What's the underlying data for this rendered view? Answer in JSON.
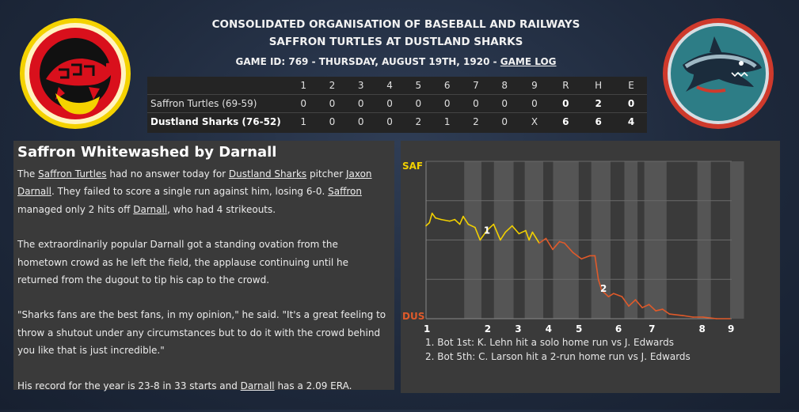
{
  "header": {
    "league": "CONSOLIDATED ORGANISATION OF BASEBALL AND RAILWAYS",
    "matchup": "SAFFRON TURTLES AT DUSTLAND SHARKS",
    "game_info": "GAME ID: 769 - THURSDAY, AUGUST 19TH, 1920 - ",
    "game_log_link": "GAME LOG"
  },
  "colors": {
    "home_team": "#e05a2a",
    "away_team": "#f2d000",
    "panel": "#3a3a3a"
  },
  "linescore": {
    "columns": [
      "1",
      "2",
      "3",
      "4",
      "5",
      "6",
      "7",
      "8",
      "9",
      "R",
      "H",
      "E"
    ],
    "rows": [
      {
        "team": "Saffron Turtles (69-59)",
        "cells": [
          "0",
          "0",
          "0",
          "0",
          "0",
          "0",
          "0",
          "0",
          "0",
          "0",
          "2",
          "0"
        ]
      },
      {
        "team": "Dustland Sharks (76-52)",
        "cells": [
          "1",
          "0",
          "0",
          "0",
          "2",
          "1",
          "2",
          "0",
          "X",
          "6",
          "6",
          "4"
        ]
      }
    ]
  },
  "story": {
    "headline": "Saffron Whitewashed by Darnall",
    "p1": {
      "t1": "The ",
      "l1": "Saffron Turtles",
      "t2": " had no answer today for ",
      "l2": "Dustland Sharks",
      "t3": " pitcher ",
      "l3": "Jaxon Darnall",
      "t4": ". They failed to score a single run against him, losing 6-0. ",
      "l4": "Saffron",
      "t5": " managed only 2 hits off ",
      "l5": "Darnall",
      "t6": ", who had 4 strikeouts."
    },
    "p2": "The extraordinarily popular Darnall got a standing ovation from the hometown crowd as he left the field, the applause continuing until he returned from the dugout to tip his cap to the crowd.",
    "p3": "\"Sharks fans are the best fans, in my opinion,\" he said. \"It's a great feeling to throw a shutout under any circumstances but to do it with the crowd behind you like that is just incredible.\"",
    "p4": {
      "t1": "His record for the year is 23-8 in 33 starts and ",
      "l1": "Darnall",
      "t2": " has a 2.09 ERA."
    }
  },
  "chart": {
    "top_label": "SAF",
    "bottom_label": "DUS",
    "inning_labels": [
      "1",
      "2",
      "3",
      "4",
      "5",
      "6",
      "7",
      "8",
      "9"
    ],
    "events": [
      {
        "marker": "1",
        "text": "1. Bot 1st: K. Lehn hit a solo home run vs J. Edwards"
      },
      {
        "marker": "2",
        "text": "2. Bot 5th: C. Larson hit a 2-run home run vs J. Edwards"
      }
    ]
  },
  "chart_data": {
    "type": "line",
    "y_top_label": "SAF",
    "y_bottom_label": "DUS",
    "x_categories": [
      "1",
      "2",
      "3",
      "4",
      "5",
      "6",
      "7",
      "8",
      "9"
    ],
    "series": [
      {
        "values": [
          [
            0.0,
            0.41
          ],
          [
            0.1,
            0.39
          ],
          [
            0.18,
            0.33
          ],
          [
            0.28,
            0.36
          ],
          [
            0.45,
            0.37
          ],
          [
            0.7,
            0.38
          ],
          [
            0.85,
            0.37
          ],
          [
            1.0,
            0.4
          ],
          [
            1.1,
            0.35
          ],
          [
            1.25,
            0.4
          ],
          [
            1.45,
            0.42
          ],
          [
            1.6,
            0.5
          ],
          [
            1.8,
            0.44
          ],
          [
            1.9,
            0.42
          ],
          [
            2.0,
            0.4
          ],
          [
            2.2,
            0.5
          ],
          [
            2.35,
            0.45
          ],
          [
            2.55,
            0.41
          ],
          [
            2.75,
            0.46
          ],
          [
            2.95,
            0.44
          ],
          [
            3.05,
            0.5
          ],
          [
            3.15,
            0.45
          ],
          [
            3.35,
            0.52
          ],
          [
            3.55,
            0.49
          ],
          [
            3.75,
            0.56
          ],
          [
            3.95,
            0.51
          ],
          [
            4.1,
            0.52
          ],
          [
            4.35,
            0.58
          ],
          [
            4.6,
            0.62
          ],
          [
            4.85,
            0.6
          ],
          [
            5.0,
            0.6
          ],
          [
            5.1,
            0.75
          ],
          [
            5.2,
            0.82
          ],
          [
            5.4,
            0.86
          ],
          [
            5.55,
            0.84
          ],
          [
            5.8,
            0.86
          ],
          [
            6.0,
            0.92
          ],
          [
            6.2,
            0.88
          ],
          [
            6.4,
            0.93
          ],
          [
            6.6,
            0.91
          ],
          [
            6.8,
            0.95
          ],
          [
            7.0,
            0.94
          ],
          [
            7.2,
            0.97
          ],
          [
            7.6,
            0.98
          ],
          [
            7.9,
            0.99
          ],
          [
            8.2,
            0.99
          ],
          [
            8.6,
            1.0
          ],
          [
            9.0,
            1.0
          ]
        ]
      }
    ],
    "annotations": [
      {
        "label": "1",
        "x": 1.8,
        "y": 0.44
      },
      {
        "label": "2",
        "x": 5.25,
        "y": 0.81
      }
    ],
    "shaded_bands": [
      [
        1.13,
        1.64
      ],
      [
        2.01,
        2.59
      ],
      [
        2.92,
        3.47
      ],
      [
        3.76,
        4.52
      ],
      [
        4.89,
        5.46
      ],
      [
        5.87,
        6.26
      ],
      [
        6.46,
        7.12
      ],
      [
        8.03,
        8.43
      ],
      [
        9.0,
        9.41
      ]
    ]
  }
}
